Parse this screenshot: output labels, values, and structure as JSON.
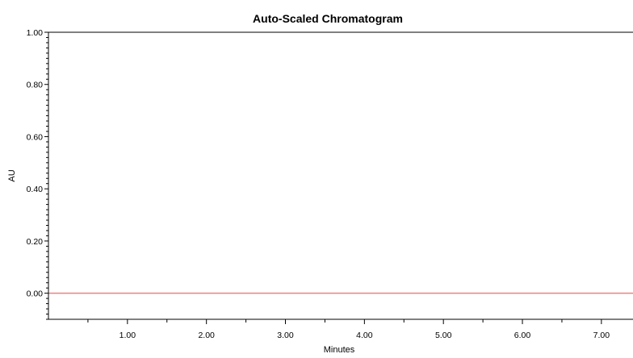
{
  "chart_data": {
    "type": "line",
    "title": "Auto-Scaled Chromatogram",
    "xlabel": "Minutes",
    "ylabel": "AU",
    "xlim": [
      0.0,
      7.4
    ],
    "ylim": [
      -0.1,
      1.0
    ],
    "x_ticks": [
      1.0,
      2.0,
      3.0,
      4.0,
      5.0,
      6.0,
      7.0
    ],
    "x_tick_labels": [
      "1.00",
      "2.00",
      "3.00",
      "4.00",
      "5.00",
      "6.00",
      "7.00"
    ],
    "y_ticks": [
      0.0,
      0.2,
      0.4,
      0.6,
      0.8,
      1.0
    ],
    "y_tick_labels": [
      "0.00",
      "0.20",
      "0.40",
      "0.60",
      "0.80",
      "1.00"
    ],
    "grid": false,
    "series": [
      {
        "color": "#f08080",
        "x": [
          0.0,
          1.0,
          2.0,
          3.0,
          4.0,
          5.0,
          6.0,
          7.0,
          7.4
        ],
        "values": [
          0.0,
          0.0,
          0.0,
          0.0,
          0.0,
          0.0,
          0.0,
          0.0,
          0.0
        ]
      }
    ]
  }
}
